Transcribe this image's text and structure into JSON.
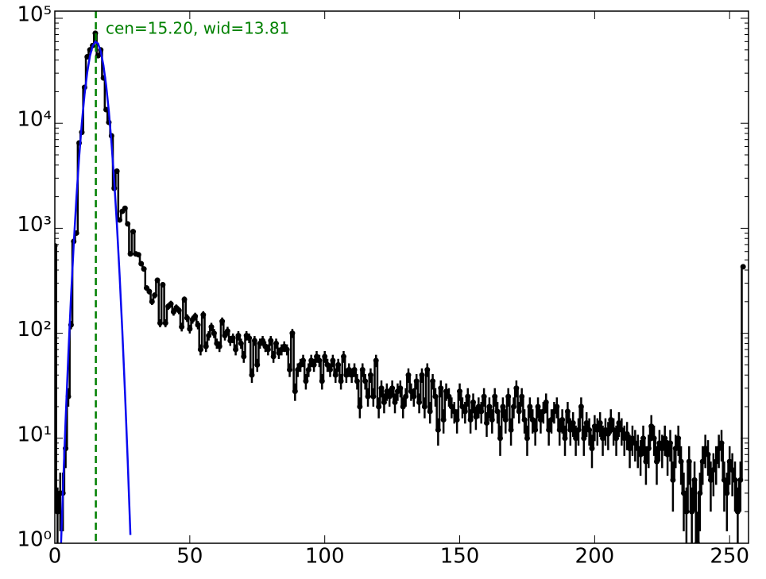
{
  "chart_data": {
    "type": "errorbar-step",
    "annotation": "cen=15.20, wid=13.81",
    "xlim": [
      0,
      257
    ],
    "xticks": [
      0,
      50,
      100,
      150,
      200,
      250
    ],
    "ylim": [
      1,
      117000
    ],
    "log_y": true,
    "yticks": [
      {
        "value": 1,
        "label": "10⁰"
      },
      {
        "value": 10,
        "label": "10¹"
      },
      {
        "value": 100,
        "label": "10²"
      },
      {
        "value": 1000,
        "label": "10³"
      },
      {
        "value": 10000,
        "label": "10⁴"
      },
      {
        "value": 100000,
        "label": "10⁵"
      }
    ],
    "vline": {
      "x": 15.2,
      "color": "#008000"
    },
    "fit": {
      "color": "#0a0af0",
      "x": [
        2,
        3,
        4,
        5,
        6,
        7,
        8,
        9,
        10,
        11,
        12,
        13,
        14,
        15,
        16,
        17,
        18,
        19,
        20,
        21,
        22,
        23,
        24,
        25,
        26,
        27,
        28
      ],
      "values": [
        0.6,
        3.2,
        15,
        62,
        224,
        703,
        1945,
        4740,
        10030,
        18700,
        30500,
        43600,
        54500,
        59800,
        57500,
        48400,
        35700,
        23100,
        13100,
        6490,
        2820,
        1080,
        358,
        105,
        27,
        6.1,
        1.2
      ]
    },
    "series": [
      {
        "color": "#000000",
        "x": [
          0,
          1,
          2,
          3,
          4,
          5,
          6,
          7,
          8,
          9,
          10,
          11,
          12,
          13,
          14,
          15,
          16,
          17,
          18,
          19,
          20,
          21,
          22,
          23,
          24,
          25,
          26,
          27,
          28,
          29,
          30,
          31,
          32,
          33,
          34,
          35,
          36,
          37,
          38,
          39,
          40,
          41,
          42,
          43,
          44,
          45,
          46,
          47,
          48,
          49,
          50,
          51,
          52,
          53,
          54,
          55,
          56,
          57,
          58,
          59,
          60,
          61,
          62,
          63,
          64,
          65,
          66,
          67,
          68,
          69,
          70,
          71,
          72,
          73,
          74,
          75,
          76,
          77,
          78,
          79,
          80,
          81,
          82,
          83,
          84,
          85,
          86,
          87,
          88,
          89,
          90,
          91,
          92,
          93,
          94,
          95,
          96,
          97,
          98,
          99,
          100,
          101,
          102,
          103,
          104,
          105,
          106,
          107,
          108,
          109,
          110,
          111,
          112,
          113,
          114,
          115,
          116,
          117,
          118,
          119,
          120,
          121,
          122,
          123,
          124,
          125,
          126,
          127,
          128,
          129,
          130,
          131,
          132,
          133,
          134,
          135,
          136,
          137,
          138,
          139,
          140,
          141,
          142,
          143,
          144,
          145,
          146,
          147,
          148,
          149,
          150,
          151,
          152,
          153,
          154,
          155,
          156,
          157,
          158,
          159,
          160,
          161,
          162,
          163,
          164,
          165,
          166,
          167,
          168,
          169,
          170,
          171,
          172,
          173,
          174,
          175,
          176,
          177,
          178,
          179,
          180,
          181,
          182,
          183,
          184,
          185,
          186,
          187,
          188,
          189,
          190,
          191,
          192,
          193,
          194,
          195,
          196,
          197,
          198,
          199,
          200,
          201,
          202,
          203,
          204,
          205,
          206,
          207,
          208,
          209,
          210,
          211,
          212,
          213,
          214,
          215,
          216,
          217,
          218,
          219,
          220,
          221,
          222,
          223,
          224,
          225,
          226,
          227,
          228,
          229,
          230,
          231,
          232,
          233,
          234,
          235,
          236,
          237,
          238,
          239,
          240,
          241,
          242,
          243,
          244,
          245,
          246,
          247,
          248,
          249,
          250,
          251,
          252,
          253,
          254,
          255
        ],
        "values": [
          680,
          2,
          3,
          3,
          8,
          25,
          120,
          750,
          900,
          6500,
          8200,
          22000,
          43000,
          50000,
          55000,
          72000,
          44000,
          50000,
          27000,
          13500,
          10200,
          7600,
          2400,
          3500,
          1200,
          1450,
          1550,
          1100,
          570,
          930,
          570,
          560,
          460,
          410,
          270,
          250,
          200,
          230,
          320,
          125,
          290,
          125,
          180,
          190,
          160,
          175,
          165,
          115,
          210,
          140,
          110,
          135,
          145,
          120,
          70,
          150,
          75,
          95,
          115,
          100,
          80,
          75,
          130,
          95,
          105,
          85,
          90,
          70,
          95,
          80,
          60,
          95,
          90,
          40,
          85,
          50,
          80,
          85,
          75,
          70,
          85,
          60,
          80,
          65,
          70,
          75,
          70,
          45,
          100,
          28,
          45,
          50,
          55,
          35,
          45,
          55,
          50,
          60,
          55,
          35,
          60,
          50,
          45,
          55,
          40,
          50,
          35,
          60,
          40,
          45,
          40,
          45,
          35,
          20,
          45,
          35,
          25,
          40,
          25,
          55,
          20,
          30,
          22,
          28,
          25,
          30,
          22,
          28,
          30,
          20,
          25,
          40,
          28,
          25,
          35,
          22,
          40,
          20,
          45,
          18,
          35,
          25,
          12,
          30,
          15,
          28,
          25,
          20,
          18,
          15,
          28,
          20,
          18,
          25,
          15,
          22,
          16,
          20,
          18,
          25,
          14,
          20,
          15,
          25,
          18,
          10,
          20,
          15,
          25,
          12,
          20,
          30,
          18,
          25,
          15,
          10,
          20,
          15,
          12,
          20,
          15,
          18,
          22,
          12,
          15,
          18,
          20,
          12,
          15,
          10,
          18,
          12,
          14,
          10,
          12,
          20,
          10,
          14,
          12,
          8,
          13,
          12,
          14,
          10,
          12,
          11,
          15,
          12,
          10,
          14,
          12,
          10,
          11,
          8,
          10,
          9,
          8,
          7,
          10,
          6,
          8,
          13,
          10,
          6,
          9,
          8,
          10,
          7,
          9,
          4,
          8,
          10,
          6,
          3,
          2,
          6,
          2,
          4,
          1,
          3,
          6,
          8,
          7,
          4,
          5,
          6,
          8,
          9,
          4,
          3,
          6,
          5,
          4,
          2,
          4,
          430
        ],
        "errors": [
          26,
          1.4,
          1.7,
          1.7,
          2.8,
          5,
          11,
          27,
          30,
          81,
          91,
          148,
          207,
          224,
          235,
          268,
          210,
          224,
          164,
          116,
          101,
          87,
          49,
          59,
          35,
          38,
          39,
          33,
          24,
          30,
          24,
          24,
          21,
          20,
          16,
          16,
          14,
          15,
          18,
          11,
          17,
          11,
          13,
          14,
          13,
          13,
          13,
          11,
          14,
          12,
          10.5,
          11.6,
          12,
          11,
          8.4,
          12.2,
          8.7,
          9.7,
          10.7,
          10,
          8.9,
          8.7,
          11.4,
          9.7,
          10.2,
          9.2,
          9.5,
          8.4,
          9.7,
          8.9,
          7.7,
          9.7,
          9.5,
          6.3,
          9.2,
          7.1,
          8.9,
          9.2,
          8.7,
          8.4,
          9.2,
          7.7,
          8.9,
          8.1,
          8.4,
          8.7,
          8.4,
          6.7,
          10,
          5.3,
          6.7,
          7.1,
          7.4,
          5.9,
          6.7,
          7.4,
          7.1,
          7.7,
          7.4,
          5.9,
          7.7,
          7.1,
          6.7,
          7.4,
          6.3,
          7.1,
          5.9,
          7.7,
          6.3,
          6.7,
          6.3,
          6.7,
          5.9,
          4.5,
          6.7,
          5.9,
          5,
          6.3,
          5,
          7.4,
          4.5,
          5.5,
          4.7,
          5.3,
          5,
          5.5,
          4.7,
          5.3,
          5.5,
          4.5,
          5,
          6.3,
          5.3,
          5,
          5.9,
          4.7,
          6.3,
          4.5,
          6.7,
          4.2,
          5.9,
          5,
          3.5,
          5.5,
          3.9,
          5.3,
          5,
          4.5,
          4.2,
          3.9,
          5.3,
          4.5,
          4.2,
          5,
          3.9,
          4.7,
          4,
          4.5,
          4.2,
          5,
          3.7,
          4.5,
          3.9,
          5,
          4.2,
          3.2,
          4.5,
          3.9,
          5,
          3.5,
          4.5,
          5.5,
          4.2,
          5,
          3.9,
          3.2,
          4.5,
          3.9,
          3.5,
          4.5,
          3.9,
          4.2,
          4.7,
          3.5,
          3.9,
          4.2,
          4.5,
          3.5,
          3.9,
          3.2,
          4.2,
          3.5,
          3.7,
          3.2,
          3.5,
          4.5,
          3.2,
          3.7,
          3.5,
          2.8,
          3.6,
          3.5,
          3.7,
          3.2,
          3.5,
          3.3,
          3.9,
          3.5,
          3.2,
          3.7,
          3.5,
          3.2,
          3.3,
          2.8,
          3.2,
          3,
          2.8,
          2.6,
          3.2,
          2.4,
          2.8,
          3.6,
          3.2,
          2.4,
          3,
          2.8,
          3.2,
          2.6,
          3,
          2,
          2.8,
          3.2,
          2.4,
          1.7,
          1.4,
          2.4,
          1.4,
          2,
          1,
          1.7,
          2.4,
          2.8,
          2.6,
          2,
          2.2,
          2.4,
          2.8,
          3,
          2,
          1.7,
          2.4,
          2.2,
          2,
          1.4,
          2,
          20.7
        ]
      }
    ]
  }
}
